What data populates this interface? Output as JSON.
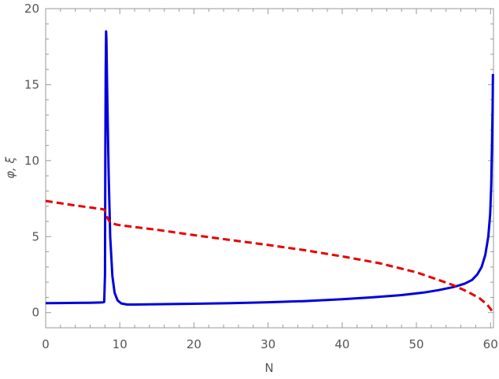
{
  "chart_data": {
    "type": "line",
    "xlabel": "N",
    "ylabel": "φ, ξ",
    "xlim": [
      0,
      60.4
    ],
    "ylim": [
      -1,
      20
    ],
    "x_ticks": [
      0,
      10,
      20,
      30,
      40,
      50,
      60
    ],
    "y_ticks": [
      0,
      5,
      10,
      15,
      20
    ],
    "x_tick_labels": [
      "0",
      "10",
      "20",
      "30",
      "40",
      "50",
      "60"
    ],
    "y_tick_labels": [
      "0",
      "5",
      "10",
      "15",
      "20"
    ],
    "grid": false,
    "series": [
      {
        "color": "#0000dd",
        "style": "solid",
        "points": [
          [
            0,
            0.62
          ],
          [
            2,
            0.63
          ],
          [
            4,
            0.64
          ],
          [
            6,
            0.65
          ],
          [
            7,
            0.66
          ],
          [
            7.7,
            0.67
          ],
          [
            7.9,
            0.7
          ],
          [
            8.0,
            2.5
          ],
          [
            8.05,
            10.0
          ],
          [
            8.1,
            16.0
          ],
          [
            8.15,
            18.5
          ],
          [
            8.2,
            18.0
          ],
          [
            8.3,
            14.5
          ],
          [
            8.5,
            9.0
          ],
          [
            8.7,
            5.0
          ],
          [
            9.0,
            2.4
          ],
          [
            9.3,
            1.3
          ],
          [
            9.7,
            0.8
          ],
          [
            10.2,
            0.6
          ],
          [
            11,
            0.53
          ],
          [
            12,
            0.53
          ],
          [
            15,
            0.55
          ],
          [
            20,
            0.58
          ],
          [
            25,
            0.62
          ],
          [
            30,
            0.68
          ],
          [
            35,
            0.76
          ],
          [
            40,
            0.88
          ],
          [
            44,
            1.0
          ],
          [
            48,
            1.15
          ],
          [
            51,
            1.32
          ],
          [
            53,
            1.48
          ],
          [
            55,
            1.68
          ],
          [
            56.5,
            1.9
          ],
          [
            57.5,
            2.15
          ],
          [
            58.2,
            2.5
          ],
          [
            58.8,
            3.0
          ],
          [
            59.3,
            3.8
          ],
          [
            59.7,
            5.0
          ],
          [
            59.95,
            6.5
          ],
          [
            60.1,
            8.5
          ],
          [
            60.2,
            11.0
          ],
          [
            60.28,
            13.5
          ],
          [
            60.33,
            15.7
          ]
        ]
      },
      {
        "color": "#e60000",
        "style": "dashed",
        "points": [
          [
            0,
            7.35
          ],
          [
            2,
            7.2
          ],
          [
            4,
            7.05
          ],
          [
            6,
            6.92
          ],
          [
            7,
            6.85
          ],
          [
            7.5,
            6.82
          ],
          [
            7.9,
            6.78
          ],
          [
            8.1,
            6.6
          ],
          [
            8.3,
            6.25
          ],
          [
            8.6,
            6.0
          ],
          [
            9.0,
            5.88
          ],
          [
            9.5,
            5.8
          ],
          [
            10,
            5.75
          ],
          [
            15,
            5.45
          ],
          [
            20,
            5.1
          ],
          [
            25,
            4.77
          ],
          [
            30,
            4.45
          ],
          [
            35,
            4.1
          ],
          [
            40,
            3.7
          ],
          [
            45,
            3.25
          ],
          [
            50,
            2.65
          ],
          [
            53,
            2.15
          ],
          [
            55,
            1.8
          ],
          [
            57,
            1.35
          ],
          [
            58.5,
            0.95
          ],
          [
            59.5,
            0.55
          ],
          [
            60.0,
            0.25
          ],
          [
            60.3,
            0.0
          ]
        ]
      }
    ]
  }
}
